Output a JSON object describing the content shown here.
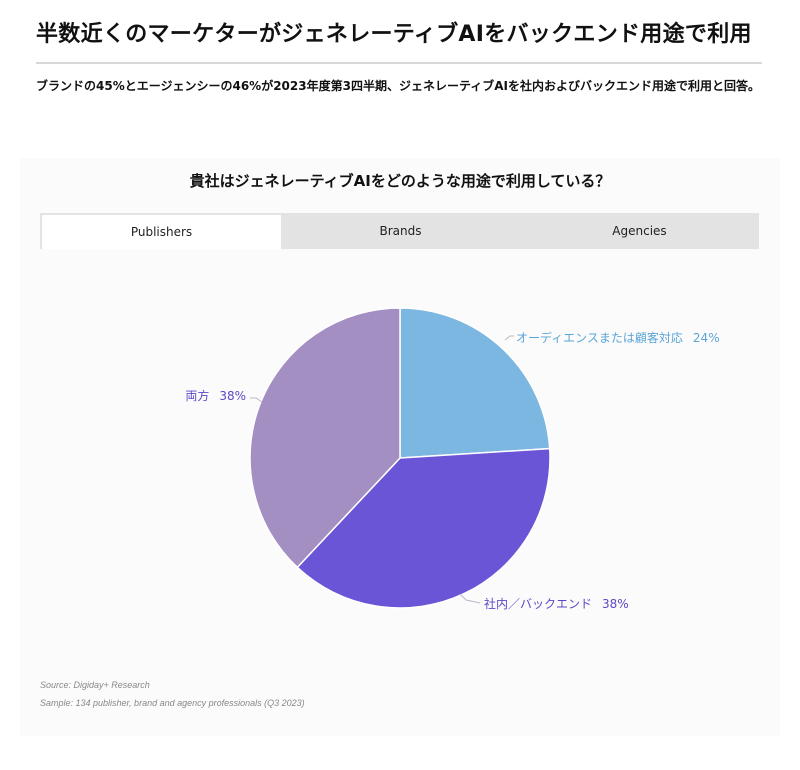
{
  "headline": "半数近くのマーケターがジェネレーティブAIをバックエンド用途で利用",
  "subhead": "ブランドの45%とエージェンシーの46%が2023年度第3四半期、ジェネレーティブAIを社内およびバックエンド用途で利用と回答。",
  "tabs": [
    {
      "label": "Publishers",
      "active": true
    },
    {
      "label": "Brands",
      "active": false
    },
    {
      "label": "Agencies",
      "active": false
    }
  ],
  "footer": {
    "source": "Source: Digiday+ Research",
    "sample": "Sample: 134 publisher, brand and agency professionals (Q3 2023)"
  },
  "chart_data": {
    "type": "pie",
    "title": "貴社はジェネレーティブAIをどのような用途で利用している？",
    "slices": [
      {
        "label": "オーディエンスまたは顧客対応",
        "value": 24,
        "display": "24%",
        "color": "#7cb7e1"
      },
      {
        "label": "社内／バックエンド",
        "value": 38,
        "display": "38%",
        "color": "#6a55d6"
      },
      {
        "label": "両方",
        "value": 38,
        "display": "38%",
        "color": "#a48fc2"
      }
    ],
    "label_colors": [
      "#5aa5d8",
      "#5c47c8",
      "#5c47c8"
    ]
  }
}
